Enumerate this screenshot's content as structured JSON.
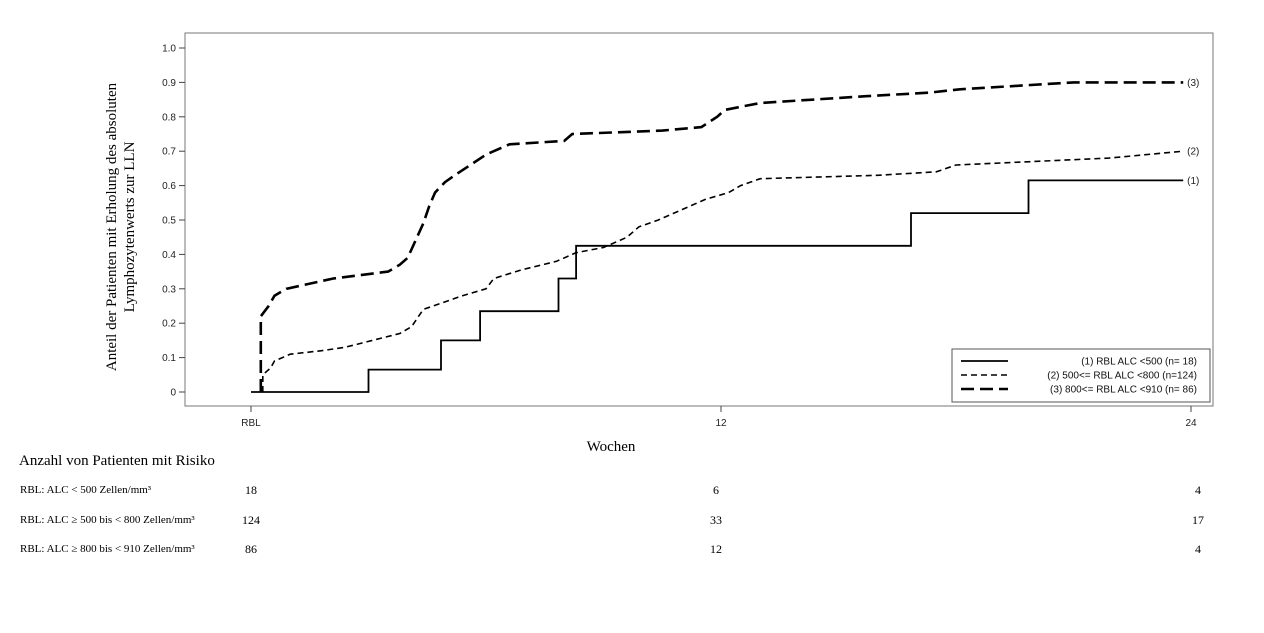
{
  "chart_data": {
    "type": "line",
    "title": "",
    "xlabel": "Wochen",
    "ylabel": [
      "Anteil der Patienten mit Erholung des absoluten",
      "Lymphozytenwerts zur  LLN"
    ],
    "xlim": [
      0,
      24
    ],
    "ylim": [
      0,
      1.0
    ],
    "x_ticks": [
      {
        "value": 0,
        "label": "RBL"
      },
      {
        "value": 12,
        "label": "12"
      },
      {
        "value": 24,
        "label": "24"
      }
    ],
    "y_ticks": [
      {
        "value": 0,
        "label": "0"
      },
      {
        "value": 0.1,
        "label": "0.1"
      },
      {
        "value": 0.2,
        "label": "0.2"
      },
      {
        "value": 0.3,
        "label": "0.3"
      },
      {
        "value": 0.4,
        "label": "0.4"
      },
      {
        "value": 0.5,
        "label": "0.5"
      },
      {
        "value": 0.6,
        "label": "0.6"
      },
      {
        "value": 0.7,
        "label": "0.7"
      },
      {
        "value": 0.8,
        "label": "0.8"
      },
      {
        "value": 0.9,
        "label": "0.9"
      },
      {
        "value": 1.0,
        "label": "1.0"
      }
    ],
    "grid": false,
    "legend_position": "bottom-right",
    "series": [
      {
        "name": "(1) RBL ALC <500 (n= 18)",
        "end_label": "(1)",
        "style": "solid",
        "color": "#000000",
        "points": [
          [
            0,
            0
          ],
          [
            3,
            0
          ],
          [
            3,
            0.065
          ],
          [
            4.85,
            0.065
          ],
          [
            4.85,
            0.15
          ],
          [
            5.85,
            0.15
          ],
          [
            5.85,
            0.235
          ],
          [
            7.85,
            0.235
          ],
          [
            7.85,
            0.33
          ],
          [
            8.3,
            0.33
          ],
          [
            8.3,
            0.425
          ],
          [
            16.85,
            0.425
          ],
          [
            16.85,
            0.52
          ],
          [
            19.85,
            0.52
          ],
          [
            19.85,
            0.615
          ],
          [
            23.8,
            0.615
          ]
        ]
      },
      {
        "name": "(2) 500<= RBL ALC <800 (n=124)",
        "end_label": "(2)",
        "style": "short-dash",
        "color": "#000000",
        "points": [
          [
            0.3,
            0
          ],
          [
            0.3,
            0.05
          ],
          [
            0.5,
            0.07
          ],
          [
            0.6,
            0.09
          ],
          [
            1.0,
            0.11
          ],
          [
            1.8,
            0.12
          ],
          [
            2.4,
            0.13
          ],
          [
            3.1,
            0.15
          ],
          [
            3.8,
            0.17
          ],
          [
            4.1,
            0.19
          ],
          [
            4.4,
            0.24
          ],
          [
            4.9,
            0.26
          ],
          [
            5.4,
            0.28
          ],
          [
            6.0,
            0.3
          ],
          [
            6.2,
            0.33
          ],
          [
            6.9,
            0.355
          ],
          [
            7.8,
            0.38
          ],
          [
            8.3,
            0.405
          ],
          [
            9.0,
            0.42
          ],
          [
            9.6,
            0.45
          ],
          [
            9.9,
            0.48
          ],
          [
            10.4,
            0.5
          ],
          [
            11.0,
            0.53
          ],
          [
            11.6,
            0.56
          ],
          [
            12.2,
            0.58
          ],
          [
            12.5,
            0.6
          ],
          [
            13.0,
            0.62
          ],
          [
            16.0,
            0.63
          ],
          [
            17.5,
            0.64
          ],
          [
            18.0,
            0.66
          ],
          [
            21.9,
            0.68
          ],
          [
            23.8,
            0.7
          ]
        ]
      },
      {
        "name": "(3) 800<= RBL ALC <910 (n= 86)",
        "end_label": "(3)",
        "style": "long-dash",
        "color": "#000000",
        "points": [
          [
            0.25,
            0
          ],
          [
            0.25,
            0.22
          ],
          [
            0.45,
            0.25
          ],
          [
            0.6,
            0.28
          ],
          [
            0.9,
            0.3
          ],
          [
            1.3,
            0.31
          ],
          [
            2.1,
            0.33
          ],
          [
            3.5,
            0.35
          ],
          [
            3.8,
            0.37
          ],
          [
            4.0,
            0.39
          ],
          [
            4.2,
            0.44
          ],
          [
            4.4,
            0.49
          ],
          [
            4.55,
            0.54
          ],
          [
            4.7,
            0.58
          ],
          [
            4.95,
            0.61
          ],
          [
            5.2,
            0.63
          ],
          [
            5.6,
            0.66
          ],
          [
            6.0,
            0.69
          ],
          [
            6.6,
            0.72
          ],
          [
            8.0,
            0.73
          ],
          [
            8.2,
            0.75
          ],
          [
            10.5,
            0.76
          ],
          [
            11.5,
            0.77
          ],
          [
            11.9,
            0.8
          ],
          [
            12.1,
            0.82
          ],
          [
            13.0,
            0.84
          ],
          [
            15.7,
            0.86
          ],
          [
            17.3,
            0.87
          ],
          [
            18.1,
            0.88
          ],
          [
            21.0,
            0.9
          ],
          [
            23.8,
            0.9
          ]
        ]
      }
    ]
  },
  "risk_table": {
    "title": "Anzahl von Patienten mit Risiko",
    "timepoints": [
      0,
      12,
      24
    ],
    "rows": [
      {
        "label": "RBL: ALC < 500 Zellen/mm³",
        "values": [
          "18",
          "6",
          "4"
        ]
      },
      {
        "label": "RBL: ALC ≥ 500 bis < 800 Zellen/mm³",
        "values": [
          "124",
          "33",
          "17"
        ]
      },
      {
        "label": "RBL: ALC ≥ 800 bis < 910 Zellen/mm³",
        "values": [
          "86",
          "12",
          "4"
        ]
      }
    ]
  }
}
